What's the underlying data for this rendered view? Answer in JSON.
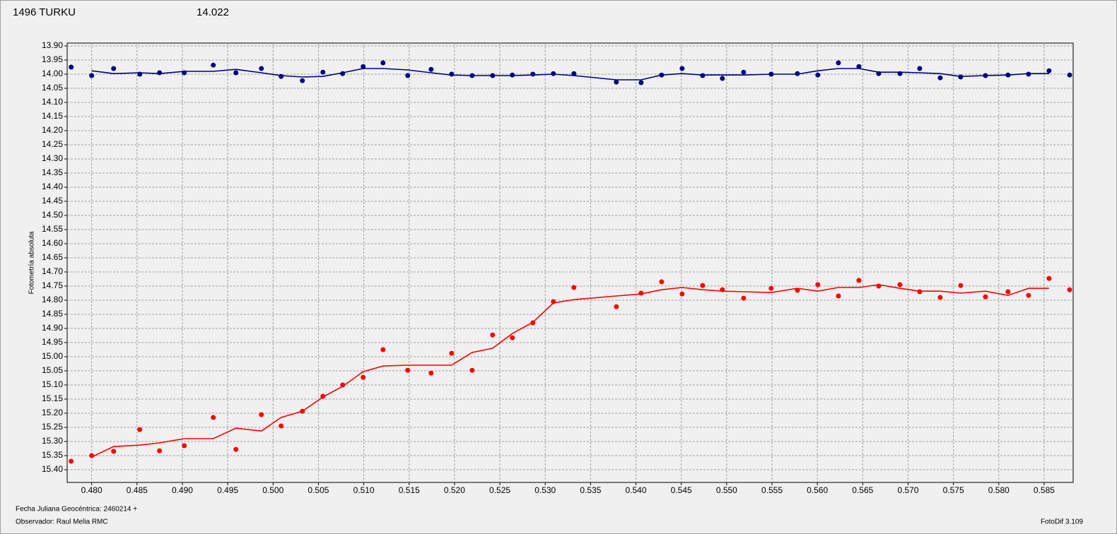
{
  "chart_data": {
    "type": "scatter",
    "title": "1496 TURKU",
    "title_color": "#ff0000",
    "subtitle": "14.022",
    "subtitle_color": "#000080",
    "y_label": "Fotometría absoluta",
    "footer_left": [
      "Fecha Juliana Geocéntrica: 2460214 +",
      "Observador: Raul Melia RMC"
    ],
    "footer_right": "FotoDif 3.109",
    "y_inverted": true,
    "grid": true,
    "xlim": [
      0.4773,
      0.5882
    ],
    "ylim": [
      13.89,
      15.445
    ],
    "xticks": [
      {
        "value": 0.48,
        "label": "0.480"
      },
      {
        "value": 0.485,
        "label": "0.485"
      },
      {
        "value": 0.49,
        "label": "0.490"
      },
      {
        "value": 0.495,
        "label": "0.495"
      },
      {
        "value": 0.5,
        "label": "0.500"
      },
      {
        "value": 0.505,
        "label": "0.505"
      },
      {
        "value": 0.51,
        "label": "0.510"
      },
      {
        "value": 0.515,
        "label": "0.515"
      },
      {
        "value": 0.52,
        "label": "0.520"
      },
      {
        "value": 0.525,
        "label": "0.525"
      },
      {
        "value": 0.53,
        "label": "0.530"
      },
      {
        "value": 0.535,
        "label": "0.535"
      },
      {
        "value": 0.54,
        "label": "0.540"
      },
      {
        "value": 0.545,
        "label": "0.545"
      },
      {
        "value": 0.55,
        "label": "0.550"
      },
      {
        "value": 0.555,
        "label": "0.555"
      },
      {
        "value": 0.56,
        "label": "0.560"
      },
      {
        "value": 0.565,
        "label": "0.565"
      },
      {
        "value": 0.57,
        "label": "0.570"
      },
      {
        "value": 0.575,
        "label": "0.575"
      },
      {
        "value": 0.58,
        "label": "0.580"
      },
      {
        "value": 0.585,
        "label": "0.585"
      }
    ],
    "yticks": [
      {
        "value": 13.9,
        "label": "13.90"
      },
      {
        "value": 13.95,
        "label": "13.95"
      },
      {
        "value": 14.0,
        "label": "14.00"
      },
      {
        "value": 14.05,
        "label": "14.05"
      },
      {
        "value": 14.1,
        "label": "14.10"
      },
      {
        "value": 14.15,
        "label": "14.15"
      },
      {
        "value": 14.2,
        "label": "14.20"
      },
      {
        "value": 14.25,
        "label": "14.25"
      },
      {
        "value": 14.3,
        "label": "14.30"
      },
      {
        "value": 14.35,
        "label": "14.35"
      },
      {
        "value": 14.4,
        "label": "14.40"
      },
      {
        "value": 14.45,
        "label": "14.45"
      },
      {
        "value": 14.5,
        "label": "14.50"
      },
      {
        "value": 14.55,
        "label": "14.55"
      },
      {
        "value": 14.6,
        "label": "14.60"
      },
      {
        "value": 14.65,
        "label": "14.65"
      },
      {
        "value": 14.7,
        "label": "14.70"
      },
      {
        "value": 14.75,
        "label": "14.75"
      },
      {
        "value": 14.8,
        "label": "14.80"
      },
      {
        "value": 14.85,
        "label": "14.85"
      },
      {
        "value": 14.9,
        "label": "14.90"
      },
      {
        "value": 14.95,
        "label": "14.95"
      },
      {
        "value": 15.0,
        "label": "15.00"
      },
      {
        "value": 15.05,
        "label": "15.05"
      },
      {
        "value": 15.1,
        "label": "15.10"
      },
      {
        "value": 15.15,
        "label": "15.15"
      },
      {
        "value": 15.2,
        "label": "15.20"
      },
      {
        "value": 15.25,
        "label": "15.25"
      },
      {
        "value": 15.3,
        "label": "15.30"
      },
      {
        "value": 15.35,
        "label": "15.35"
      },
      {
        "value": 15.4,
        "label": "15.40"
      }
    ],
    "x": [
      0.47774,
      0.48,
      0.48242,
      0.4853,
      0.48748,
      0.49021,
      0.49341,
      0.4959,
      0.49871,
      0.50089,
      0.50323,
      0.50549,
      0.50767,
      0.50993,
      0.51212,
      0.51484,
      0.51742,
      0.51968,
      0.52194,
      0.5242,
      0.52638,
      0.52864,
      0.5309,
      0.53316,
      0.53784,
      0.54057,
      0.54283,
      0.54509,
      0.54735,
      0.54953,
      0.55187,
      0.55491,
      0.5578,
      0.56005,
      0.56232,
      0.56458,
      0.56676,
      0.5691,
      0.57128,
      0.57354,
      0.5758,
      0.57853,
      0.58102,
      0.58328,
      0.58554,
      0.58781
    ],
    "series": [
      {
        "color": "#000080",
        "mode": "markers",
        "values": [
          13.975,
          14.005,
          13.98,
          14.0,
          13.995,
          13.995,
          13.968,
          13.995,
          13.98,
          14.008,
          14.023,
          13.993,
          13.998,
          13.973,
          13.96,
          14.005,
          13.983,
          14.0,
          14.005,
          14.005,
          14.003,
          14.0,
          13.998,
          13.998,
          14.028,
          14.03,
          14.003,
          13.98,
          14.005,
          14.015,
          13.993,
          14.0,
          13.998,
          14.003,
          13.96,
          13.973,
          13.998,
          13.998,
          13.98,
          14.013,
          14.01,
          14.005,
          14.003,
          14.0,
          13.988,
          14.003
        ]
      },
      {
        "color": "#000080",
        "mode": "line",
        "values": [
          null,
          13.988,
          13.998,
          13.995,
          13.998,
          13.99,
          13.99,
          13.983,
          13.995,
          14.005,
          14.01,
          14.008,
          13.995,
          13.98,
          13.98,
          13.985,
          13.995,
          14.003,
          14.005,
          14.005,
          14.005,
          14.003,
          14.0,
          14.005,
          14.02,
          14.02,
          14.003,
          13.998,
          14.003,
          14.003,
          14.003,
          14.0,
          14.0,
          13.988,
          13.98,
          13.98,
          13.993,
          13.993,
          13.995,
          13.998,
          14.008,
          14.005,
          14.003,
          13.998,
          13.998,
          null
        ]
      },
      {
        "color": "#ff0000",
        "mode": "markers",
        "values": [
          15.37,
          15.35,
          15.335,
          15.258,
          15.333,
          15.315,
          15.215,
          15.328,
          15.205,
          15.245,
          15.193,
          15.14,
          15.1,
          15.073,
          14.975,
          15.048,
          15.058,
          14.988,
          15.048,
          14.923,
          14.933,
          14.88,
          14.805,
          14.755,
          14.823,
          14.775,
          14.735,
          14.778,
          14.748,
          14.763,
          14.793,
          14.758,
          14.765,
          14.745,
          14.785,
          14.73,
          14.75,
          14.745,
          14.77,
          14.79,
          14.748,
          14.788,
          14.77,
          14.783,
          14.723,
          14.763
        ]
      },
      {
        "color": "#ff0000",
        "mode": "line",
        "values": [
          null,
          15.355,
          15.318,
          15.313,
          15.305,
          15.29,
          15.29,
          15.253,
          15.263,
          15.215,
          15.193,
          15.143,
          15.105,
          15.053,
          15.033,
          15.03,
          15.03,
          15.03,
          14.985,
          14.97,
          14.918,
          14.878,
          14.81,
          14.798,
          14.785,
          14.778,
          14.763,
          14.755,
          14.763,
          14.768,
          14.77,
          14.773,
          14.758,
          14.768,
          14.755,
          14.755,
          14.745,
          14.758,
          14.768,
          14.768,
          14.775,
          14.768,
          14.783,
          14.758,
          14.758,
          null
        ]
      }
    ]
  }
}
